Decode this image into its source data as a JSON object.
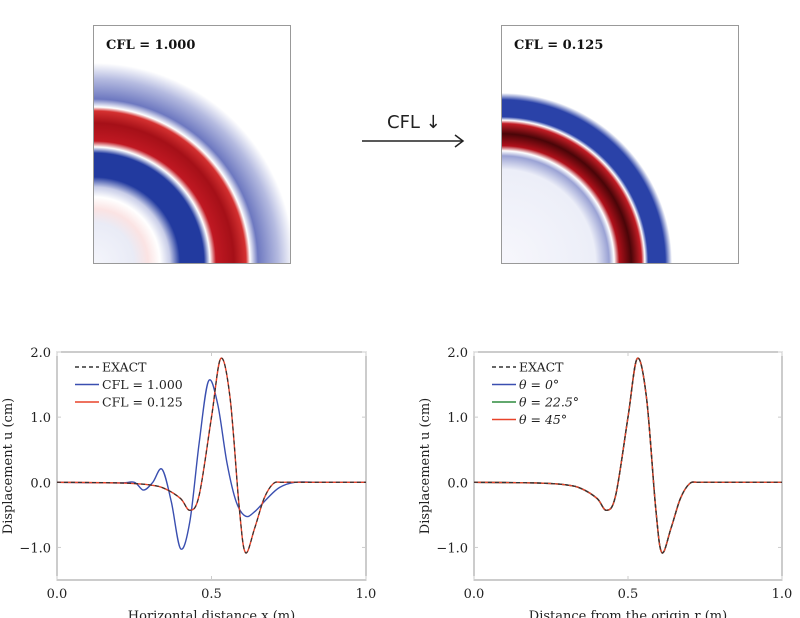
{
  "snapshots": [
    {
      "label": "CFL = 1.000",
      "cfl": 1.0
    },
    {
      "label": "CFL = 0.125",
      "cfl": 0.125
    }
  ],
  "arrow_label": "CFL ↓",
  "colors": {
    "blue": "#3a4fb0",
    "red": "#e8432a",
    "green": "#2e8b3e",
    "exact": "#333333"
  },
  "chart_data": [
    {
      "type": "line",
      "xlabel": "Horizontal distance x (m)",
      "ylabel": "Displacement u (cm)",
      "xlim": [
        0.0,
        1.0
      ],
      "ylim": [
        -1.5,
        2.0
      ],
      "xticks": [
        "0.0",
        "0.5",
        "1.0"
      ],
      "yticks": [
        "2.0",
        "1.0",
        "0.0",
        "−1.0"
      ],
      "legend": "top-left",
      "series": [
        {
          "name": "EXACT",
          "style": "dashed",
          "color": "#333333",
          "x": [
            0,
            0.2,
            0.3,
            0.35,
            0.4,
            0.43,
            0.46,
            0.5,
            0.53,
            0.56,
            0.59,
            0.61,
            0.64,
            0.67,
            0.7,
            0.73,
            0.8,
            1.0
          ],
          "y": [
            0,
            -0.01,
            -0.04,
            -0.1,
            -0.25,
            -0.43,
            -0.2,
            1.0,
            1.9,
            1.3,
            -0.4,
            -1.08,
            -0.7,
            -0.25,
            -0.02,
            0,
            0,
            0
          ]
        },
        {
          "name": "CFL = 1.000",
          "style": "solid",
          "color": "#3a4fb0",
          "x": [
            0,
            0.2,
            0.25,
            0.28,
            0.31,
            0.34,
            0.37,
            0.4,
            0.43,
            0.46,
            0.49,
            0.52,
            0.55,
            0.58,
            0.61,
            0.64,
            0.68,
            0.72,
            0.77,
            0.85,
            1.0
          ],
          "y": [
            0,
            -0.01,
            0.0,
            -0.12,
            0.0,
            0.2,
            -0.3,
            -1.02,
            -0.6,
            0.6,
            1.55,
            1.2,
            0.3,
            -0.3,
            -0.52,
            -0.45,
            -0.25,
            -0.08,
            0,
            0,
            0
          ]
        },
        {
          "name": "CFL = 0.125",
          "style": "solid",
          "color": "#e8432a",
          "x": [
            0,
            0.2,
            0.3,
            0.35,
            0.4,
            0.43,
            0.46,
            0.5,
            0.53,
            0.56,
            0.59,
            0.61,
            0.64,
            0.67,
            0.7,
            0.73,
            0.8,
            1.0
          ],
          "y": [
            0,
            -0.01,
            -0.04,
            -0.1,
            -0.25,
            -0.43,
            -0.2,
            1.0,
            1.9,
            1.3,
            -0.4,
            -1.08,
            -0.7,
            -0.25,
            -0.02,
            0,
            0,
            0
          ]
        }
      ]
    },
    {
      "type": "line",
      "xlabel": "Distance from the origin r (m)",
      "ylabel": "Displacement u (cm)",
      "xlim": [
        0.0,
        1.0
      ],
      "ylim": [
        -1.5,
        2.0
      ],
      "xticks": [
        "0.0",
        "0.5",
        "1.0"
      ],
      "yticks": [
        "2.0",
        "1.0",
        "0.0",
        "−1.0"
      ],
      "legend": "top-left",
      "series": [
        {
          "name": "EXACT",
          "style": "dashed",
          "color": "#333333",
          "x": [
            0,
            0.2,
            0.3,
            0.35,
            0.4,
            0.43,
            0.46,
            0.5,
            0.53,
            0.56,
            0.59,
            0.61,
            0.64,
            0.67,
            0.7,
            0.73,
            0.8,
            1.0
          ],
          "y": [
            0,
            -0.01,
            -0.04,
            -0.1,
            -0.25,
            -0.43,
            -0.2,
            1.0,
            1.9,
            1.3,
            -0.4,
            -1.08,
            -0.7,
            -0.25,
            -0.02,
            0,
            0,
            0
          ]
        },
        {
          "name": "θ = 0°",
          "style": "solid",
          "color": "#3a4fb0",
          "x": [
            0,
            0.2,
            0.3,
            0.35,
            0.4,
            0.43,
            0.46,
            0.5,
            0.53,
            0.56,
            0.59,
            0.61,
            0.64,
            0.67,
            0.7,
            0.73,
            0.8,
            1.0
          ],
          "y": [
            0,
            -0.01,
            -0.04,
            -0.1,
            -0.25,
            -0.43,
            -0.2,
            1.0,
            1.9,
            1.3,
            -0.4,
            -1.08,
            -0.7,
            -0.25,
            -0.02,
            0,
            0,
            0
          ]
        },
        {
          "name": "θ = 22.5°",
          "style": "solid",
          "color": "#2e8b3e",
          "x": [
            0,
            0.2,
            0.3,
            0.35,
            0.4,
            0.43,
            0.46,
            0.5,
            0.53,
            0.56,
            0.59,
            0.61,
            0.64,
            0.67,
            0.7,
            0.73,
            0.8,
            1.0
          ],
          "y": [
            0,
            -0.01,
            -0.04,
            -0.1,
            -0.25,
            -0.43,
            -0.2,
            1.0,
            1.9,
            1.3,
            -0.4,
            -1.08,
            -0.7,
            -0.25,
            -0.02,
            0,
            0,
            0
          ]
        },
        {
          "name": "θ = 45°",
          "style": "solid",
          "color": "#e8432a",
          "x": [
            0,
            0.2,
            0.3,
            0.35,
            0.4,
            0.43,
            0.46,
            0.5,
            0.53,
            0.56,
            0.59,
            0.61,
            0.64,
            0.67,
            0.7,
            0.73,
            0.8,
            1.0
          ],
          "y": [
            0,
            -0.01,
            -0.04,
            -0.1,
            -0.25,
            -0.43,
            -0.2,
            1.0,
            1.9,
            1.3,
            -0.4,
            -1.08,
            -0.7,
            -0.25,
            -0.02,
            0,
            0,
            0
          ]
        }
      ]
    }
  ]
}
